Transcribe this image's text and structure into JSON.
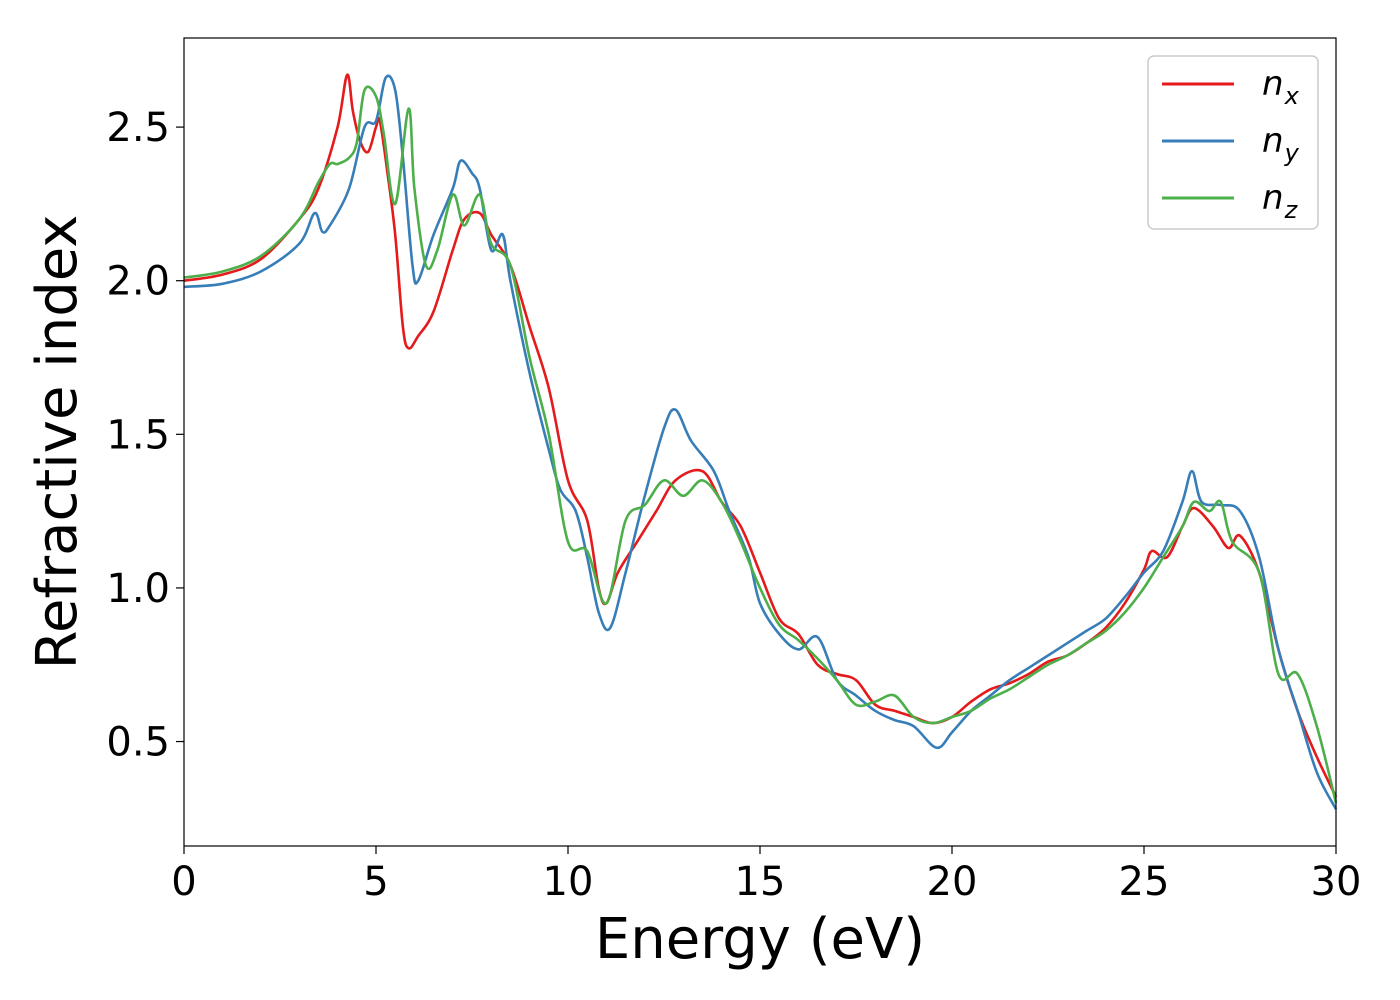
{
  "chart_data": {
    "type": "line",
    "xlabel": "Energy (eV)",
    "ylabel": "Refractive index",
    "xlim": [
      0,
      30
    ],
    "ylim": [
      0.16,
      2.79
    ],
    "xticks": [
      0,
      5,
      10,
      15,
      20,
      25,
      30
    ],
    "yticks": [
      0.5,
      1.0,
      1.5,
      2.0,
      2.5
    ],
    "xtick_labels": [
      "0",
      "5",
      "10",
      "15",
      "20",
      "25",
      "30"
    ],
    "ytick_labels": [
      "0.5",
      "1.0",
      "1.5",
      "2.0",
      "2.5"
    ],
    "grid": false,
    "legend_position": "top-right",
    "series": [
      {
        "name": "n",
        "subscript": "x",
        "color": "#e41a1c",
        "points": [
          [
            0,
            2.0
          ],
          [
            1,
            2.02
          ],
          [
            2,
            2.07
          ],
          [
            3,
            2.2
          ],
          [
            3.5,
            2.3
          ],
          [
            4.0,
            2.5
          ],
          [
            4.25,
            2.67
          ],
          [
            4.4,
            2.55
          ],
          [
            4.6,
            2.45
          ],
          [
            4.8,
            2.42
          ],
          [
            5.0,
            2.5
          ],
          [
            5.1,
            2.52
          ],
          [
            5.3,
            2.35
          ],
          [
            5.5,
            2.15
          ],
          [
            5.7,
            1.85
          ],
          [
            5.85,
            1.78
          ],
          [
            6.1,
            1.82
          ],
          [
            6.5,
            1.9
          ],
          [
            7.0,
            2.1
          ],
          [
            7.3,
            2.2
          ],
          [
            7.7,
            2.22
          ],
          [
            8.0,
            2.15
          ],
          [
            8.5,
            2.05
          ],
          [
            9.0,
            1.85
          ],
          [
            9.5,
            1.65
          ],
          [
            10.0,
            1.35
          ],
          [
            10.5,
            1.22
          ],
          [
            10.8,
            1.0
          ],
          [
            11.0,
            0.95
          ],
          [
            11.3,
            1.05
          ],
          [
            11.8,
            1.15
          ],
          [
            12.3,
            1.25
          ],
          [
            12.8,
            1.35
          ],
          [
            13.5,
            1.38
          ],
          [
            14.0,
            1.28
          ],
          [
            14.5,
            1.2
          ],
          [
            15.0,
            1.05
          ],
          [
            15.5,
            0.9
          ],
          [
            16.0,
            0.85
          ],
          [
            16.5,
            0.75
          ],
          [
            17.0,
            0.72
          ],
          [
            17.5,
            0.7
          ],
          [
            18.0,
            0.62
          ],
          [
            18.5,
            0.6
          ],
          [
            19.0,
            0.58
          ],
          [
            19.5,
            0.56
          ],
          [
            20.0,
            0.58
          ],
          [
            20.5,
            0.63
          ],
          [
            21.0,
            0.67
          ],
          [
            21.5,
            0.69
          ],
          [
            22.0,
            0.72
          ],
          [
            22.5,
            0.76
          ],
          [
            23.0,
            0.78
          ],
          [
            23.5,
            0.82
          ],
          [
            24.0,
            0.87
          ],
          [
            24.5,
            0.95
          ],
          [
            25.0,
            1.06
          ],
          [
            25.2,
            1.12
          ],
          [
            25.6,
            1.1
          ],
          [
            26.0,
            1.2
          ],
          [
            26.3,
            1.26
          ],
          [
            26.8,
            1.2
          ],
          [
            27.2,
            1.13
          ],
          [
            27.5,
            1.17
          ],
          [
            28.0,
            1.05
          ],
          [
            28.5,
            0.8
          ],
          [
            29.0,
            0.6
          ],
          [
            29.5,
            0.45
          ],
          [
            30.0,
            0.32
          ]
        ]
      },
      {
        "name": "n",
        "subscript": "y",
        "color": "#377eb8",
        "points": [
          [
            0,
            1.98
          ],
          [
            1,
            1.99
          ],
          [
            2,
            2.03
          ],
          [
            3,
            2.12
          ],
          [
            3.4,
            2.22
          ],
          [
            3.6,
            2.16
          ],
          [
            3.8,
            2.18
          ],
          [
            4.3,
            2.3
          ],
          [
            4.7,
            2.5
          ],
          [
            5.0,
            2.52
          ],
          [
            5.25,
            2.66
          ],
          [
            5.5,
            2.62
          ],
          [
            5.7,
            2.4
          ],
          [
            5.95,
            2.05
          ],
          [
            6.1,
            2.0
          ],
          [
            6.5,
            2.15
          ],
          [
            7.0,
            2.3
          ],
          [
            7.2,
            2.39
          ],
          [
            7.5,
            2.35
          ],
          [
            7.7,
            2.3
          ],
          [
            8.0,
            2.1
          ],
          [
            8.3,
            2.15
          ],
          [
            8.5,
            2.0
          ],
          [
            9.0,
            1.7
          ],
          [
            9.5,
            1.45
          ],
          [
            9.8,
            1.32
          ],
          [
            10.2,
            1.25
          ],
          [
            10.5,
            1.1
          ],
          [
            10.8,
            0.92
          ],
          [
            11.1,
            0.87
          ],
          [
            11.5,
            1.05
          ],
          [
            12.0,
            1.3
          ],
          [
            12.5,
            1.52
          ],
          [
            12.8,
            1.58
          ],
          [
            13.2,
            1.48
          ],
          [
            13.8,
            1.38
          ],
          [
            14.2,
            1.25
          ],
          [
            14.7,
            1.1
          ],
          [
            15.0,
            0.95
          ],
          [
            15.5,
            0.85
          ],
          [
            16.0,
            0.8
          ],
          [
            16.5,
            0.84
          ],
          [
            17.0,
            0.7
          ],
          [
            17.5,
            0.65
          ],
          [
            18.0,
            0.6
          ],
          [
            18.5,
            0.57
          ],
          [
            19.0,
            0.55
          ],
          [
            19.6,
            0.48
          ],
          [
            20.0,
            0.53
          ],
          [
            20.5,
            0.6
          ],
          [
            21.0,
            0.65
          ],
          [
            21.5,
            0.7
          ],
          [
            22.0,
            0.74
          ],
          [
            22.5,
            0.78
          ],
          [
            23.0,
            0.82
          ],
          [
            23.5,
            0.86
          ],
          [
            24.0,
            0.9
          ],
          [
            24.5,
            0.97
          ],
          [
            25.0,
            1.05
          ],
          [
            25.5,
            1.12
          ],
          [
            26.0,
            1.28
          ],
          [
            26.25,
            1.38
          ],
          [
            26.5,
            1.28
          ],
          [
            27.0,
            1.27
          ],
          [
            27.5,
            1.25
          ],
          [
            28.0,
            1.1
          ],
          [
            28.5,
            0.8
          ],
          [
            29.0,
            0.6
          ],
          [
            29.5,
            0.4
          ],
          [
            30.0,
            0.28
          ]
        ]
      },
      {
        "name": "n",
        "subscript": "z",
        "color": "#4daf4a",
        "points": [
          [
            0,
            2.01
          ],
          [
            1,
            2.03
          ],
          [
            2,
            2.08
          ],
          [
            3,
            2.2
          ],
          [
            3.5,
            2.32
          ],
          [
            3.8,
            2.38
          ],
          [
            4.0,
            2.38
          ],
          [
            4.3,
            2.4
          ],
          [
            4.5,
            2.45
          ],
          [
            4.7,
            2.62
          ],
          [
            5.0,
            2.6
          ],
          [
            5.2,
            2.48
          ],
          [
            5.5,
            2.25
          ],
          [
            5.85,
            2.56
          ],
          [
            6.0,
            2.3
          ],
          [
            6.3,
            2.05
          ],
          [
            6.6,
            2.1
          ],
          [
            7.0,
            2.28
          ],
          [
            7.3,
            2.18
          ],
          [
            7.7,
            2.28
          ],
          [
            8.0,
            2.12
          ],
          [
            8.5,
            2.05
          ],
          [
            9.0,
            1.75
          ],
          [
            9.5,
            1.5
          ],
          [
            10.0,
            1.15
          ],
          [
            10.5,
            1.12
          ],
          [
            11.0,
            0.95
          ],
          [
            11.5,
            1.22
          ],
          [
            12.0,
            1.27
          ],
          [
            12.5,
            1.35
          ],
          [
            13.0,
            1.3
          ],
          [
            13.5,
            1.35
          ],
          [
            14.0,
            1.28
          ],
          [
            14.5,
            1.15
          ],
          [
            15.0,
            1.0
          ],
          [
            15.5,
            0.88
          ],
          [
            16.0,
            0.83
          ],
          [
            16.5,
            0.77
          ],
          [
            17.0,
            0.7
          ],
          [
            17.5,
            0.62
          ],
          [
            18.0,
            0.63
          ],
          [
            18.5,
            0.65
          ],
          [
            19.0,
            0.58
          ],
          [
            19.5,
            0.56
          ],
          [
            20.0,
            0.58
          ],
          [
            20.5,
            0.6
          ],
          [
            21.0,
            0.64
          ],
          [
            21.5,
            0.67
          ],
          [
            22.0,
            0.71
          ],
          [
            22.5,
            0.75
          ],
          [
            23.0,
            0.78
          ],
          [
            23.5,
            0.82
          ],
          [
            24.0,
            0.86
          ],
          [
            24.5,
            0.92
          ],
          [
            25.0,
            1.0
          ],
          [
            25.5,
            1.1
          ],
          [
            26.0,
            1.2
          ],
          [
            26.3,
            1.28
          ],
          [
            26.7,
            1.25
          ],
          [
            27.0,
            1.28
          ],
          [
            27.3,
            1.15
          ],
          [
            28.0,
            1.05
          ],
          [
            28.5,
            0.72
          ],
          [
            29.0,
            0.72
          ],
          [
            29.5,
            0.55
          ],
          [
            30.0,
            0.3
          ]
        ]
      }
    ]
  }
}
